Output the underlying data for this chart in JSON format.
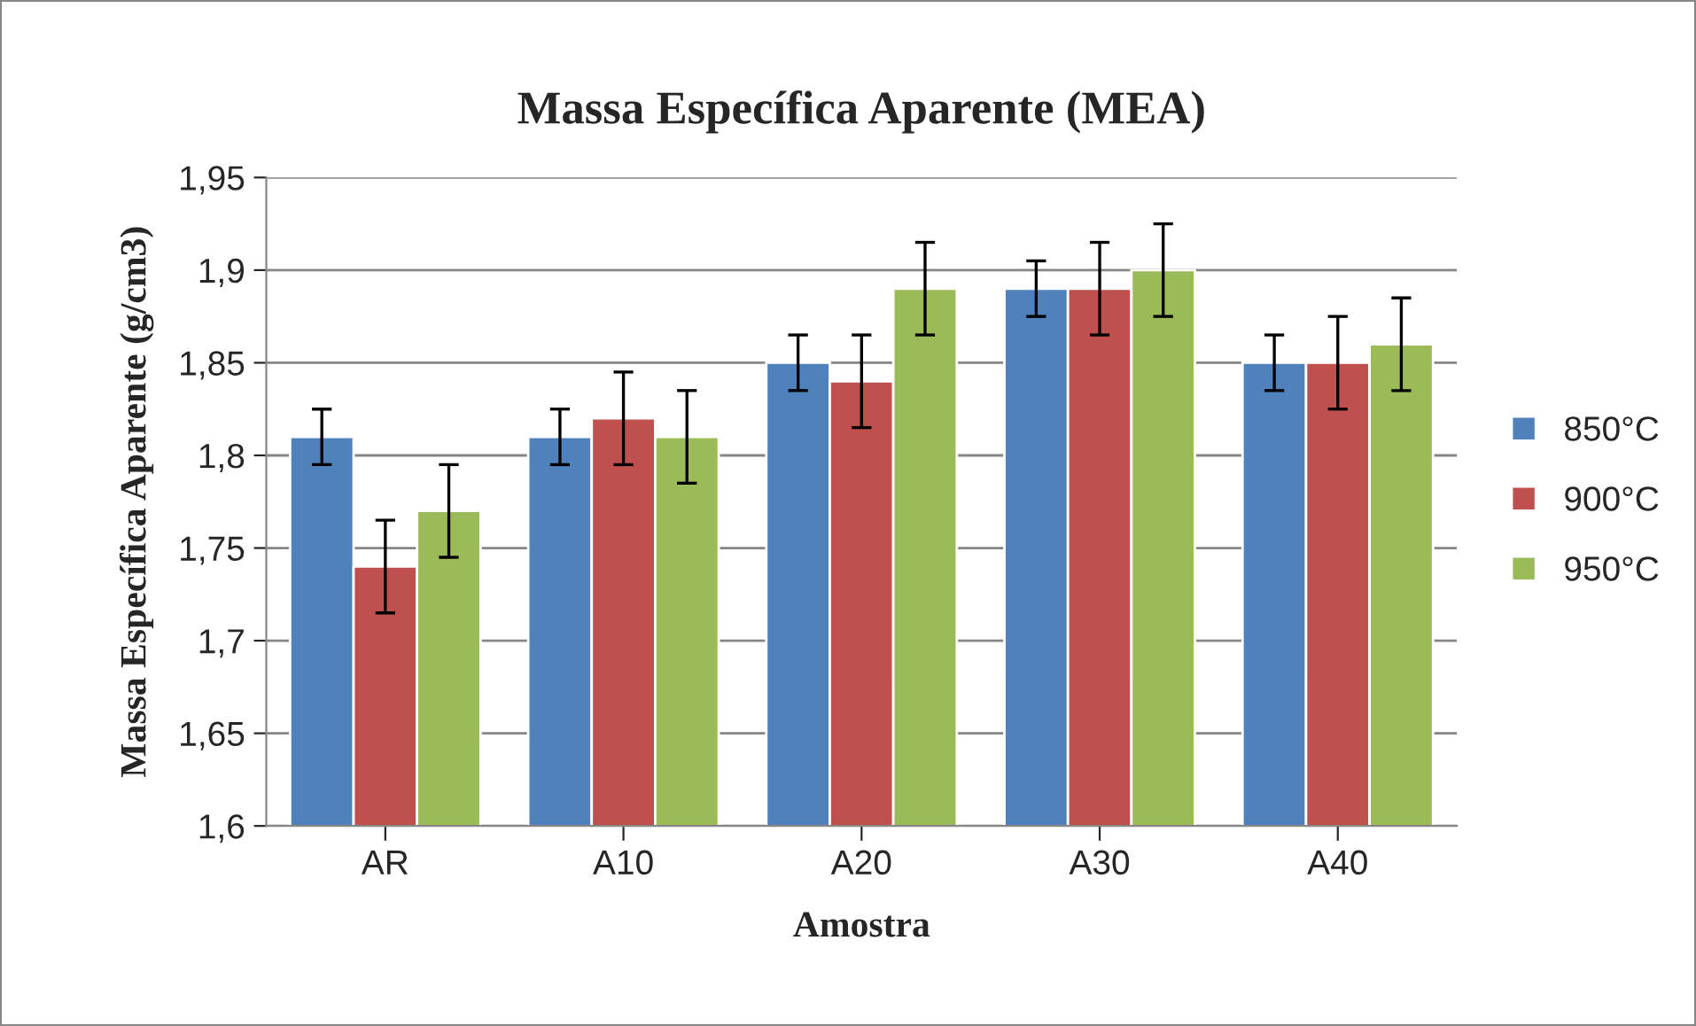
{
  "chart_data": {
    "type": "bar",
    "title": "Massa Específica Aparente (MEA)",
    "xlabel": "Amostra",
    "ylabel": "Massa Específica Aparente (g/cm3)",
    "categories": [
      "AR",
      "A10",
      "A20",
      "A30",
      "A40"
    ],
    "series": [
      {
        "name": "850°C",
        "color": "#4f81bd",
        "values": [
          1.81,
          1.81,
          1.85,
          1.89,
          1.85
        ],
        "errors": [
          0.015,
          0.015,
          0.015,
          0.015,
          0.015
        ]
      },
      {
        "name": "900°C",
        "color": "#c0504d",
        "values": [
          1.74,
          1.82,
          1.84,
          1.89,
          1.85
        ],
        "errors": [
          0.025,
          0.025,
          0.025,
          0.025,
          0.025
        ]
      },
      {
        "name": "950°C",
        "color": "#9bbb59",
        "values": [
          1.77,
          1.81,
          1.89,
          1.9,
          1.86
        ],
        "errors": [
          0.025,
          0.025,
          0.025,
          0.025,
          0.025
        ]
      }
    ],
    "ylim": [
      1.6,
      1.95
    ],
    "yticks": [
      {
        "value": 1.6,
        "label": "1,6"
      },
      {
        "value": 1.65,
        "label": "1,65"
      },
      {
        "value": 1.7,
        "label": "1,7"
      },
      {
        "value": 1.75,
        "label": "1,75"
      },
      {
        "value": 1.8,
        "label": "1,8"
      },
      {
        "value": 1.85,
        "label": "1,85"
      },
      {
        "value": 1.9,
        "label": "1,9"
      },
      {
        "value": 1.95,
        "label": "1,95"
      }
    ],
    "grid": "y",
    "legend": "right"
  }
}
